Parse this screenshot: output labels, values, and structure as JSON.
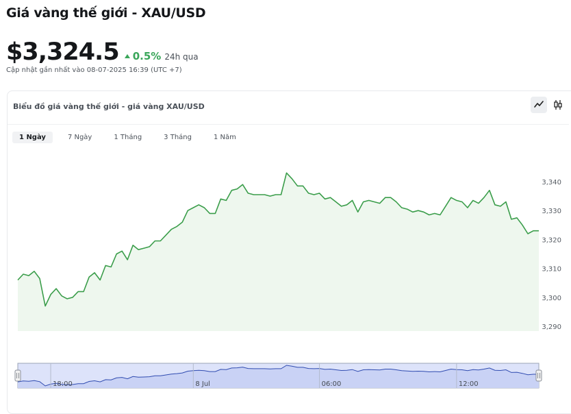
{
  "page": {
    "title": "Giá vàng thế giới - XAU/USD",
    "price": "$3,324.5",
    "change": "0.5%",
    "change_period": "24h qua",
    "updated": "Cập nhật gần nhất vào 08-07-2025 16:39 (UTC +7)",
    "accent_color": "#3aa65a"
  },
  "panel": {
    "title": "Biểu đồ giá vàng thế giới - giá vàng XAU/USD",
    "chart_type_buttons": [
      {
        "icon": "line-chart-icon",
        "active": true
      },
      {
        "icon": "candlestick-icon",
        "active": false
      }
    ],
    "range_tabs": [
      {
        "label": "1 Ngày",
        "active": true
      },
      {
        "label": "7 Ngày",
        "active": false
      },
      {
        "label": "1 Tháng",
        "active": false
      },
      {
        "label": "3 Tháng",
        "active": false
      },
      {
        "label": "1 Năm",
        "active": false
      }
    ]
  },
  "chart_data": {
    "type": "area",
    "series": [
      {
        "values": [
          3306,
          3308,
          3307.5,
          3309,
          3306.5,
          3297,
          3301,
          3303,
          3300.5,
          3299.5,
          3300,
          3302,
          3302,
          3307,
          3308.5,
          3306,
          3311,
          3310.5,
          3315,
          3316,
          3313,
          3318,
          3316.5,
          3317,
          3317.5,
          3319.5,
          3319.5,
          3321.5,
          3323.5,
          3324.5,
          3326,
          3330,
          3331,
          3332,
          3331,
          3329,
          3329,
          3334,
          3333.5,
          3337,
          3337.5,
          3339,
          3336,
          3335.5,
          3335.5,
          3335.5,
          3335,
          3335.5,
          3335.5,
          3343,
          3341,
          3338.5,
          3338.5,
          3336,
          3335.5,
          3336,
          3334,
          3334.5,
          3333,
          3331.5,
          3332,
          3333.5,
          3329.5,
          3333,
          3333.5,
          3333,
          3332.5,
          3334.5,
          3334.5,
          3333,
          3331,
          3330.5,
          3329.5,
          3330,
          3329.5,
          3328.5,
          3329,
          3328.5,
          3331.5,
          3334.5,
          3333.5,
          3333,
          3331,
          3333.5,
          3332.5,
          3334.5,
          3337,
          3332,
          3331.5,
          3333,
          3327,
          3327.5,
          3325,
          3322,
          3323,
          3323
        ]
      }
    ],
    "y_ticks": [
      "3,340",
      "3,330",
      "3,320",
      "3,310",
      "3,300",
      "3,290"
    ],
    "y_tick_values": [
      3340,
      3330,
      3320,
      3310,
      3300,
      3290
    ],
    "ylim": [
      3288,
      3346
    ],
    "grid": false,
    "line_color": "#3a9d4a",
    "fill_color": "#eef7ee",
    "navigator": {
      "labels": [
        "18:00",
        "8 Jul",
        "06:00",
        "12:00"
      ],
      "label_index": [
        6,
        32,
        55,
        80
      ],
      "fill_color": "#dde3fa",
      "line_color": "#2f4bb0"
    }
  }
}
